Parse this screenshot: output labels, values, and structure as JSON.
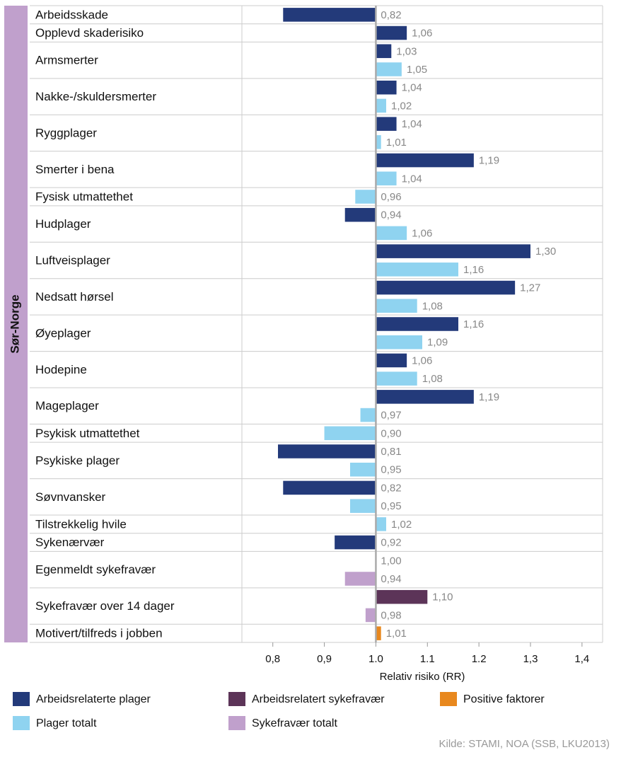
{
  "chart_data": {
    "type": "hbar",
    "group_label": "Sør-Norge",
    "x_label": "Relativ risiko (RR)",
    "source": "Kilde: STAMI, NOA (SSB, LKU2013)",
    "baseline": 1,
    "xlim": [
      0.74,
      1.44
    ],
    "xticks": [
      {
        "value": 0.8,
        "label": "0,8"
      },
      {
        "value": 0.9,
        "label": "0,9"
      },
      {
        "value": 1,
        "label": "1.0"
      },
      1.1,
      1.2,
      {
        "value": 1.3,
        "label": "1,3"
      },
      {
        "value": 1.4,
        "label": "1,4"
      }
    ],
    "categories": [
      "Arbeidsskade",
      "Opplevd skaderisiko",
      "Armsmerter",
      "Nakke-/skuldersmerter",
      "Ryggplager",
      "Smerter i bena",
      "Fysisk utmattethet",
      "Hudplager",
      "Luftveisplager",
      "Nedsatt hørsel",
      "Øyeplager",
      "Hodepine",
      "Mageplager",
      "Psykisk utmattethet",
      "Psykiske plager",
      "Søvnvansker",
      "Tilstrekkelig hvile",
      "Sykenærvær",
      "Egenmeldt sykefravær",
      "Sykefravær over 14 dager",
      "Motivert/tilfreds i jobben"
    ],
    "series": [
      {
        "name": "Arbeidsrelaterte plager",
        "color": "#233a7a",
        "values": [
          0.82,
          1.06,
          1.03,
          1.04,
          1.04,
          1.19,
          null,
          0.94,
          1.3,
          1.27,
          1.16,
          1.06,
          1.19,
          null,
          0.81,
          0.82,
          null,
          0.92,
          null,
          null,
          null
        ],
        "value_labels": [
          "0,82",
          "1,06",
          "1,03",
          "1,04",
          "1,04",
          "1,19",
          null,
          "0,94",
          "1,30",
          "1,27",
          "1,16",
          "1,06",
          "1,19",
          null,
          "0,81",
          "0,82",
          null,
          "0,92",
          null,
          null,
          null
        ]
      },
      {
        "name": "Arbeidsrelatert sykefravær",
        "color": "#5c3458",
        "values": [
          null,
          null,
          null,
          null,
          null,
          null,
          null,
          null,
          null,
          null,
          null,
          null,
          null,
          null,
          null,
          null,
          null,
          null,
          1.0,
          1.1,
          null
        ],
        "value_labels": [
          null,
          null,
          null,
          null,
          null,
          null,
          null,
          null,
          null,
          null,
          null,
          null,
          null,
          null,
          null,
          null,
          null,
          null,
          "1,00",
          "1,10",
          null
        ]
      },
      {
        "name": "Positive faktorer",
        "color": "#e8881e",
        "values": [
          null,
          null,
          null,
          null,
          null,
          null,
          null,
          null,
          null,
          null,
          null,
          null,
          null,
          null,
          null,
          null,
          null,
          null,
          null,
          null,
          1.01
        ],
        "value_labels": [
          null,
          null,
          null,
          null,
          null,
          null,
          null,
          null,
          null,
          null,
          null,
          null,
          null,
          null,
          null,
          null,
          null,
          null,
          null,
          null,
          "1,01"
        ]
      },
      {
        "name": "Plager totalt",
        "color": "#8fd3f0",
        "values": [
          null,
          null,
          1.05,
          1.02,
          1.01,
          1.04,
          0.96,
          1.06,
          1.16,
          1.08,
          1.09,
          1.08,
          0.97,
          0.9,
          0.95,
          0.95,
          1.02,
          null,
          null,
          null,
          null
        ],
        "value_labels": [
          null,
          null,
          "1,05",
          "1,02",
          "1,01",
          "1,04",
          "0,96",
          "1,06",
          "1,16",
          "1,08",
          "1,09",
          "1,08",
          "0,97",
          "0,90",
          "0,95",
          "0,95",
          "1,02",
          null,
          null,
          null,
          null
        ]
      },
      {
        "name": "Sykefravær totalt",
        "color": "#c0a0cc",
        "values": [
          null,
          null,
          null,
          null,
          null,
          null,
          null,
          null,
          null,
          null,
          null,
          null,
          null,
          null,
          null,
          null,
          null,
          null,
          0.94,
          0.98,
          null
        ],
        "value_labels": [
          null,
          null,
          null,
          null,
          null,
          null,
          null,
          null,
          null,
          null,
          null,
          null,
          null,
          null,
          null,
          null,
          null,
          null,
          "0,94",
          "0,98",
          null
        ]
      }
    ]
  }
}
